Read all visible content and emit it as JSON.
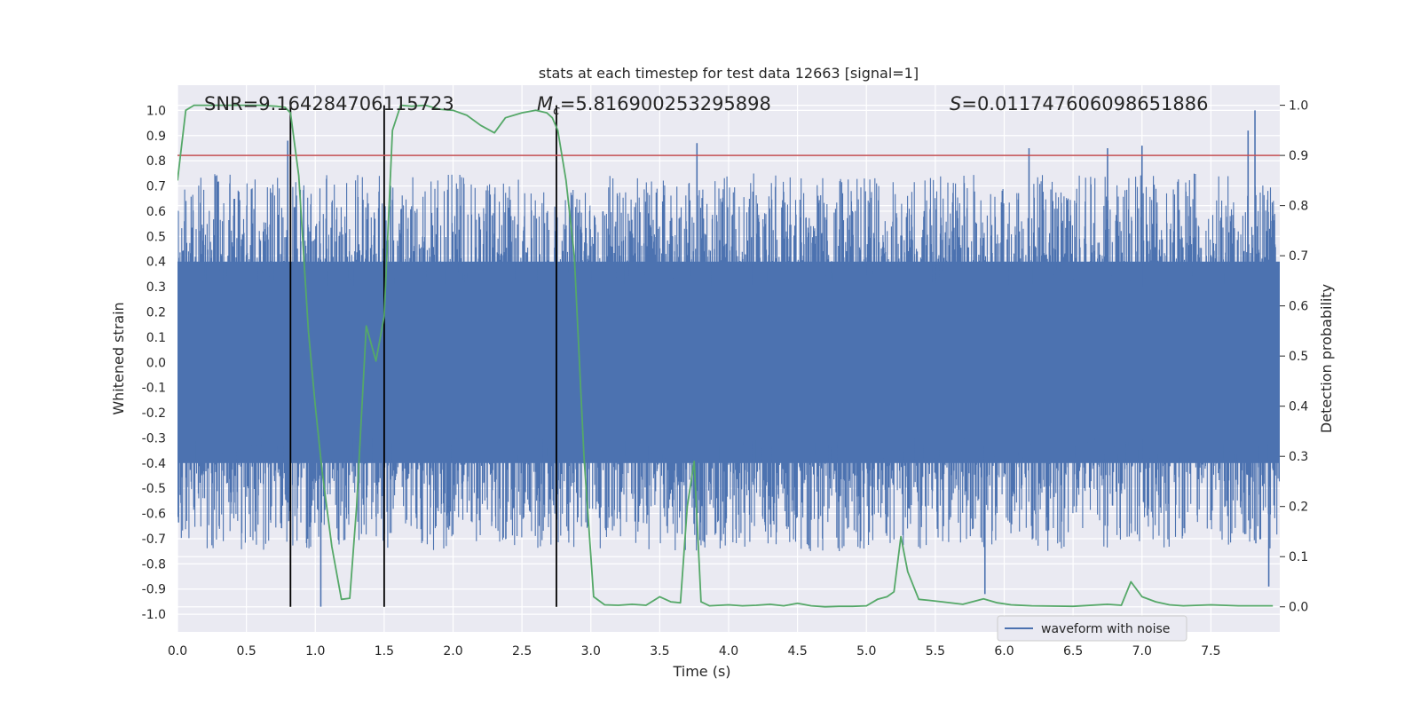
{
  "chart_data": {
    "type": "line",
    "title": "stats at each timestep for test data 12663 [signal=1]",
    "xlabel": "Time (s)",
    "ylabel": "Whitened strain",
    "ylabel_right": "Detection probability",
    "xlim": [
      0.0,
      8.0
    ],
    "ylim": [
      -1.07,
      1.1
    ],
    "ylim_right": [
      -0.05,
      1.04
    ],
    "xticks": [
      "0.0",
      "0.5",
      "1.0",
      "1.5",
      "2.0",
      "2.5",
      "3.0",
      "3.5",
      "4.0",
      "4.5",
      "5.0",
      "5.5",
      "6.0",
      "6.5",
      "7.0",
      "7.5"
    ],
    "yticks": [
      "1.0",
      "0.9",
      "0.8",
      "0.7",
      "0.6",
      "0.5",
      "0.4",
      "0.3",
      "0.2",
      "0.1",
      "0.0",
      "-0.1",
      "-0.2",
      "-0.3",
      "-0.4",
      "-0.5",
      "-0.6",
      "-0.7",
      "-0.8",
      "-0.9",
      "-1.0"
    ],
    "yticks_right": [
      "1.0",
      "0.9",
      "0.8",
      "0.7",
      "0.6",
      "0.5",
      "0.4",
      "0.3",
      "0.2",
      "0.1",
      "0.0"
    ],
    "annotations": {
      "snr": "SNR=9.164284706115723",
      "mc_symbol": "M",
      "mc_sub": "c",
      "mc_value": "=5.816900253295898",
      "s_symbol": "S",
      "s_value": "=0.011747606098651886"
    },
    "threshold": {
      "value": 0.9,
      "axis": "right",
      "color": "#c44e52"
    },
    "vertical_markers": [
      0.82,
      1.5,
      2.75
    ],
    "marker_color": "#000000",
    "legend": {
      "label": "waveform with noise",
      "position": "lower-right",
      "color": "#4c72b0"
    },
    "series": [
      {
        "name": "waveform with noise",
        "axis": "left",
        "color": "#4c72b0",
        "style": "dense-noise",
        "core_band": [
          -0.4,
          0.4
        ],
        "spikes": [
          {
            "x": 0.8,
            "y": 0.88
          },
          {
            "x": 1.04,
            "y": -0.97
          },
          {
            "x": 3.77,
            "y": 0.87
          },
          {
            "x": 5.86,
            "y": -0.92
          },
          {
            "x": 6.18,
            "y": 0.85
          },
          {
            "x": 6.75,
            "y": 0.85
          },
          {
            "x": 7.0,
            "y": 0.86
          },
          {
            "x": 7.77,
            "y": 0.92
          },
          {
            "x": 7.82,
            "y": 1.0
          },
          {
            "x": 7.92,
            "y": -0.89
          }
        ]
      },
      {
        "name": "detection probability",
        "axis": "right",
        "color": "#55a868",
        "x": [
          0.0,
          0.06,
          0.12,
          0.2,
          0.4,
          0.6,
          0.72,
          0.78,
          0.82,
          0.88,
          0.95,
          1.0,
          1.05,
          1.12,
          1.19,
          1.25,
          1.3,
          1.37,
          1.44,
          1.5,
          1.56,
          1.62,
          1.7,
          1.8,
          1.9,
          2.0,
          2.1,
          2.2,
          2.3,
          2.38,
          2.5,
          2.6,
          2.68,
          2.72,
          2.76,
          2.82,
          2.88,
          2.95,
          3.02,
          3.1,
          3.2,
          3.3,
          3.4,
          3.5,
          3.58,
          3.65,
          3.7,
          3.75,
          3.8,
          3.86,
          4.0,
          4.1,
          4.2,
          4.3,
          4.4,
          4.5,
          4.6,
          4.7,
          4.8,
          4.9,
          5.0,
          5.08,
          5.15,
          5.2,
          5.25,
          5.3,
          5.38,
          5.45,
          5.55,
          5.7,
          5.85,
          5.95,
          6.05,
          6.2,
          6.5,
          6.75,
          6.85,
          6.92,
          7.0,
          7.1,
          7.2,
          7.3,
          7.5,
          7.7,
          7.95
        ],
        "values": [
          0.85,
          0.99,
          1.0,
          1.0,
          1.0,
          1.0,
          0.998,
          0.996,
          0.985,
          0.86,
          0.55,
          0.4,
          0.27,
          0.12,
          0.015,
          0.017,
          0.2,
          0.56,
          0.49,
          0.58,
          0.95,
          1.0,
          0.998,
          1.0,
          0.992,
          0.99,
          0.98,
          0.96,
          0.945,
          0.975,
          0.985,
          0.99,
          0.985,
          0.975,
          0.95,
          0.85,
          0.7,
          0.3,
          0.02,
          0.004,
          0.003,
          0.005,
          0.003,
          0.02,
          0.01,
          0.008,
          0.2,
          0.29,
          0.01,
          0.002,
          0.004,
          0.002,
          0.003,
          0.005,
          0.002,
          0.007,
          0.002,
          0.0,
          0.001,
          0.001,
          0.002,
          0.015,
          0.02,
          0.03,
          0.14,
          0.07,
          0.015,
          0.013,
          0.01,
          0.005,
          0.016,
          0.008,
          0.004,
          0.002,
          0.001,
          0.005,
          0.003,
          0.05,
          0.02,
          0.01,
          0.004,
          0.002,
          0.004,
          0.002,
          0.002
        ]
      }
    ]
  }
}
